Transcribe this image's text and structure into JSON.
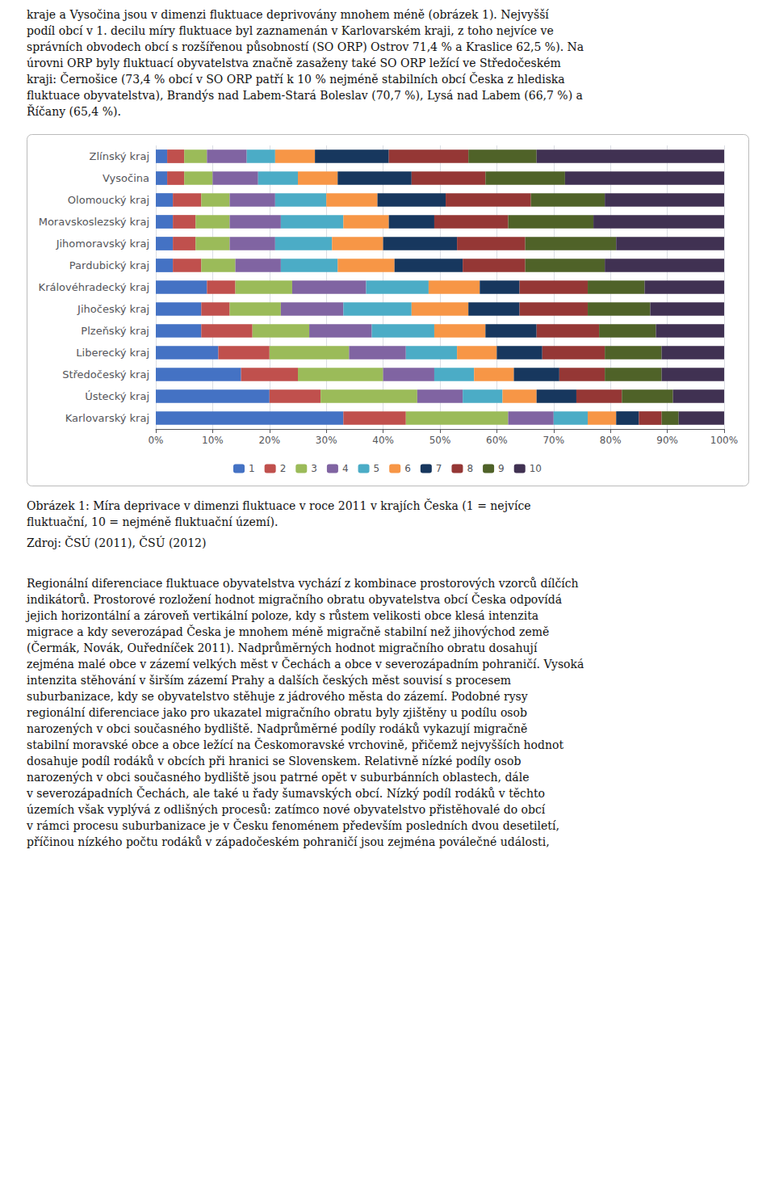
{
  "chart_data": {
    "type": "bar",
    "orientation": "horizontal",
    "stacked": true,
    "categories": [
      "Karlovarský kraj",
      "Ústecký kraj",
      "Středočeský kraj",
      "Liberecký kraj",
      "Plzeňský kraj",
      "Jihočeský kraj",
      "Královéhradecký kraj",
      "Pardubický kraj",
      "Jihomoravský kraj",
      "Moravskoslezský kraj",
      "Olomoucký kraj",
      "Vysočina",
      "Zlínský kraj"
    ],
    "series": [
      {
        "name": "1",
        "color": "#4472C4",
        "values": [
          33,
          20,
          15,
          11,
          8,
          8,
          9,
          3,
          3,
          3,
          3,
          2,
          2
        ]
      },
      {
        "name": "2",
        "color": "#C0504D",
        "values": [
          11,
          9,
          10,
          9,
          9,
          5,
          5,
          5,
          4,
          4,
          5,
          3,
          3
        ]
      },
      {
        "name": "3",
        "color": "#9BBB59",
        "values": [
          18,
          17,
          15,
          14,
          10,
          9,
          10,
          6,
          6,
          6,
          5,
          5,
          4
        ]
      },
      {
        "name": "4",
        "color": "#8064A2",
        "values": [
          8,
          8,
          9,
          10,
          11,
          11,
          13,
          8,
          8,
          9,
          8,
          8,
          7
        ]
      },
      {
        "name": "5",
        "color": "#4BACC6",
        "values": [
          6,
          7,
          7,
          9,
          11,
          12,
          11,
          10,
          10,
          11,
          9,
          7,
          5
        ]
      },
      {
        "name": "6",
        "color": "#F79646",
        "values": [
          5,
          6,
          7,
          7,
          9,
          10,
          9,
          10,
          9,
          8,
          9,
          7,
          7
        ]
      },
      {
        "name": "7",
        "color": "#17375E",
        "values": [
          4,
          7,
          8,
          8,
          9,
          9,
          7,
          12,
          13,
          8,
          12,
          13,
          13
        ]
      },
      {
        "name": "8",
        "color": "#953735",
        "values": [
          4,
          8,
          8,
          11,
          11,
          12,
          12,
          11,
          12,
          13,
          15,
          13,
          14
        ]
      },
      {
        "name": "9",
        "color": "#4F6228",
        "values": [
          3,
          9,
          10,
          10,
          10,
          11,
          10,
          14,
          16,
          15,
          13,
          14,
          12
        ]
      },
      {
        "name": "10",
        "color": "#403152",
        "values": [
          8,
          9,
          11,
          11,
          12,
          13,
          14,
          21,
          19,
          23,
          21,
          28,
          33
        ]
      }
    ],
    "xlim": [
      0,
      100
    ],
    "xticks": [
      {
        "value": 0,
        "label": "0%"
      },
      {
        "value": 10,
        "label": "10%"
      },
      {
        "value": 20,
        "label": "20%"
      },
      {
        "value": 30,
        "label": "30%"
      },
      {
        "value": 40,
        "label": "40%"
      },
      {
        "value": 50,
        "label": "50%"
      },
      {
        "value": 60,
        "label": "60%"
      },
      {
        "value": 70,
        "label": "70%"
      },
      {
        "value": 80,
        "label": "80%"
      },
      {
        "value": 90,
        "label": "90%"
      },
      {
        "value": 100,
        "label": "100%"
      }
    ],
    "grid": true,
    "legend": "bottom",
    "annotations": [
      "kraje a Vysočina jsou v dimenzi fluktuace deprivovány mnohem méně (obrázek 1). Nejvyšší\npodíl obcí v 1. decilu míry fluktuace byl zaznamenán v Karlovarském kraji, z toho nejvíce ve\nsprávních obvodech obcí s rozšířenou působností (SO ORP) Ostrov 71,4 % a Kraslice 62,5 %). Na\núrovni ORP byly fluktuací obyvatelstva značně zasaženy také SO ORP ležící ve Středočeském\nkraji: Černošice (73,4 % obcí v SO ORP patří k 10 % nejméně stabilních obcí Česka z hlediska\nfluktuace obyvatelstva), Brandýs nad Labem-Stará Boleslav (70,7 %), Lysá nad Labem (66,7 %) a\nŘíčany (65,4 %).",
      "Obrázek 1: Míra deprivace v dimenzi fluktuace v roce 2011 v krajích Česka (1 = nejvíce\nfluktuační, 10 = nejméně fluktuační území).",
      "Zdroj: ČSÚ (2011), ČSÚ (2012)",
      "Regionální diferenciace fluktuace obyvatelstva vychází z kombinace prostorových vzorců dílčích\nindikátorů. Prostorové rozložení hodnot migračního obratu obyvatelstva obcí Česka odpovídá\njejich horizontální a zároveň vertikální poloze, kdy s růstem velikosti obce klesá intenzita\nmigrace a kdy severozápad Česka je mnohem méně migračně stabilní než jihovýchod země\n(Čermák, Novák, Ouředníček 2011). Nadprůměrných hodnot migračního obratu dosahují\nzejména malé obce v zázemí velkých měst v Čechách a obce v severozápadním pohraničí. Vysoká\nintenzita stěhování v širším zázemí Prahy a dalších českých měst souvisí s procesem\nsuburbanizace, kdy se obyvatelstvo stěhuje z jádrového města do zázemí. Podobné rysy\nregionální diferenciace jako pro ukazatel migračního obratu byly zjištěny u podílu osob\nnarozených v obci současného bydliště. Nadprůměrné podíly rodáků vykazují migračně\nstabilní moravské obce a obce ležící na Českomoravské vrchovině, přičemž nejvyšších hodnot\ndosahuje podíl rodáků v obcích při hranici se Slovenskem. Relativně nízké podíly osob\nnarozených v obci současného bydliště jsou patrné opět v suburbánních oblastech, dále\nv severozápadních Čechách, ale také u řady šumavských obcí. Nízký podíl rodáků v těchto\núzemích však vyplývá z odlišných procesů: zatímco nové obyvatelstvo přistěhovalé do obcí\nv rámci procesu suburbanizace je v Česku fenoménem především posledních dvou desetiletí,\npříčinou nízkého počtu rodáků v západočeském pohraničí jsou zejména poválečné události,"
    ]
  }
}
